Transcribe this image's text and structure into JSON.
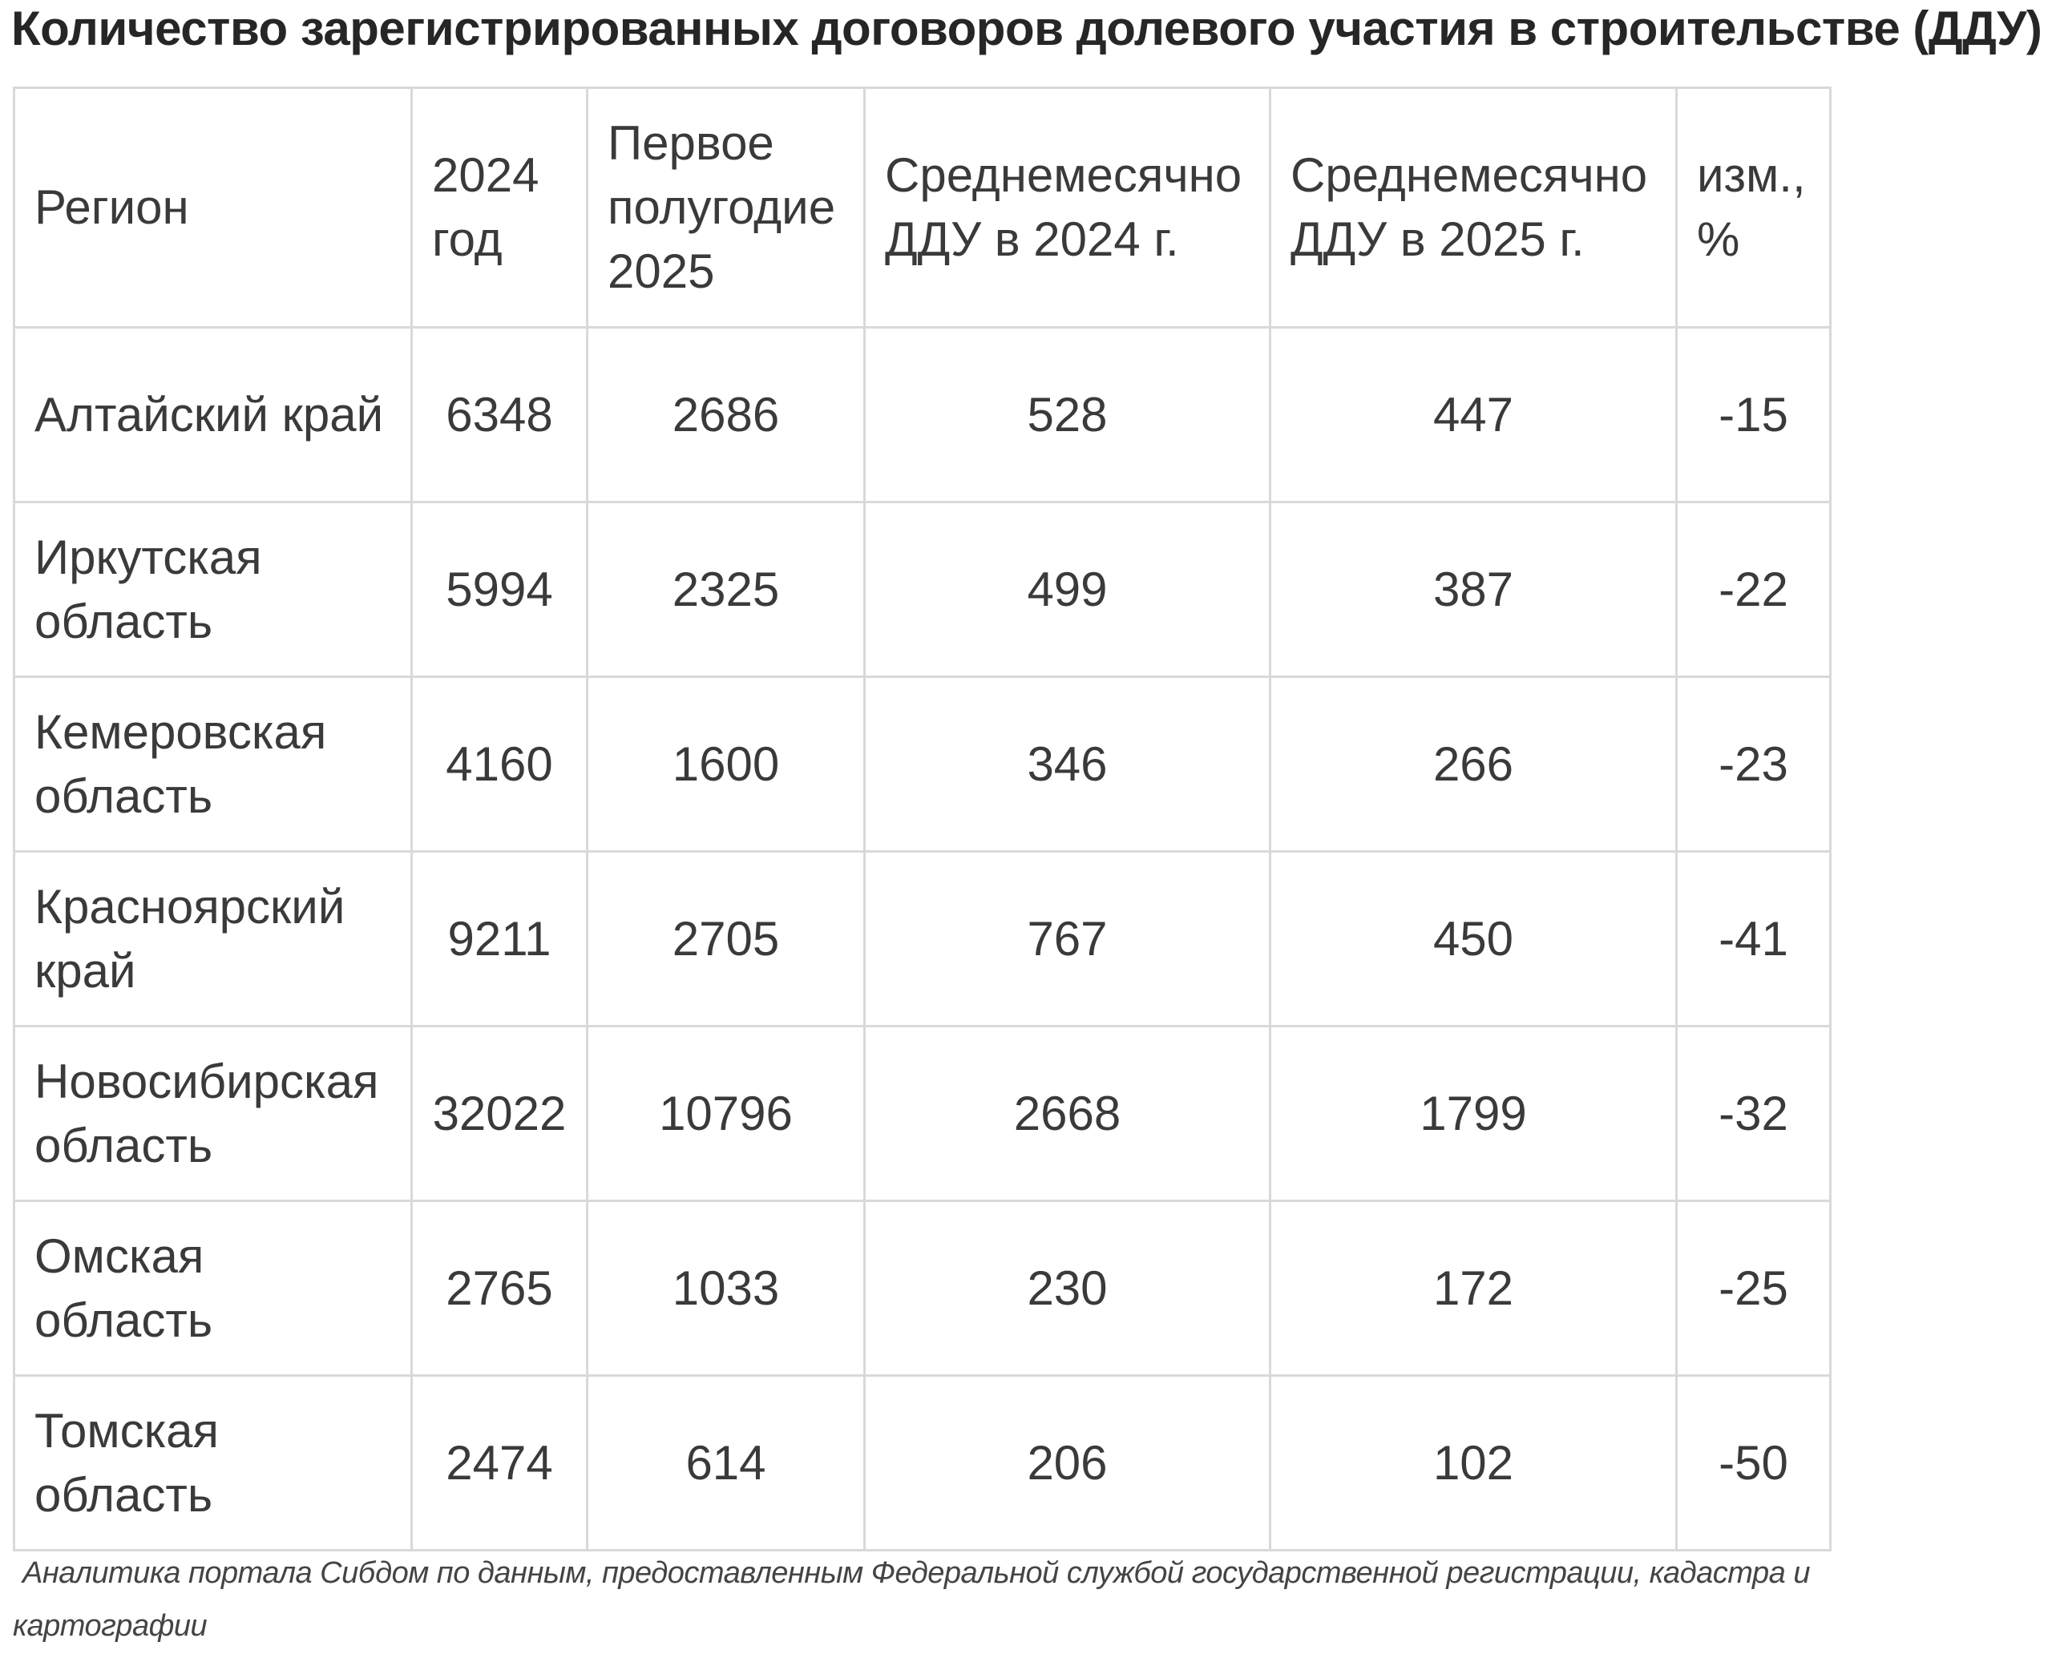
{
  "title": "Количество зарегистрированных договоров долевого участия в строительстве (ДДУ)",
  "table": {
    "headers": [
      "Регион",
      "2024 год",
      "Первое полугодие 2025",
      "Среднемесячно ДДУ в 2024 г.",
      "Среднемесячно ДДУ в 2025 г.",
      "изм., %"
    ],
    "rows": [
      {
        "region": "Алтайский край",
        "y2024": "6348",
        "h1_2025": "2686",
        "avg2024": "528",
        "avg2025": "447",
        "change": "-15"
      },
      {
        "region": "Иркутская область",
        "y2024": "5994",
        "h1_2025": "2325",
        "avg2024": "499",
        "avg2025": "387",
        "change": "-22"
      },
      {
        "region": "Кемеровская область",
        "y2024": "4160",
        "h1_2025": "1600",
        "avg2024": "346",
        "avg2025": "266",
        "change": "-23"
      },
      {
        "region": "Красноярский край",
        "y2024": "9211",
        "h1_2025": "2705",
        "avg2024": "767",
        "avg2025": "450",
        "change": "-41"
      },
      {
        "region": "Новосибирская область",
        "y2024": "32022",
        "h1_2025": "10796",
        "avg2024": "2668",
        "avg2025": "1799",
        "change": "-32"
      },
      {
        "region": "Омская область",
        "y2024": "2765",
        "h1_2025": "1033",
        "avg2024": "230",
        "avg2025": "172",
        "change": "-25"
      },
      {
        "region": "Томская область",
        "y2024": "2474",
        "h1_2025": "614",
        "avg2024": "206",
        "avg2025": "102",
        "change": "-50"
      }
    ]
  },
  "caption": "Аналитика портала Сибдом по данным, предоставленным Федеральной службой государственной регистрации, кадастра и картографии"
}
